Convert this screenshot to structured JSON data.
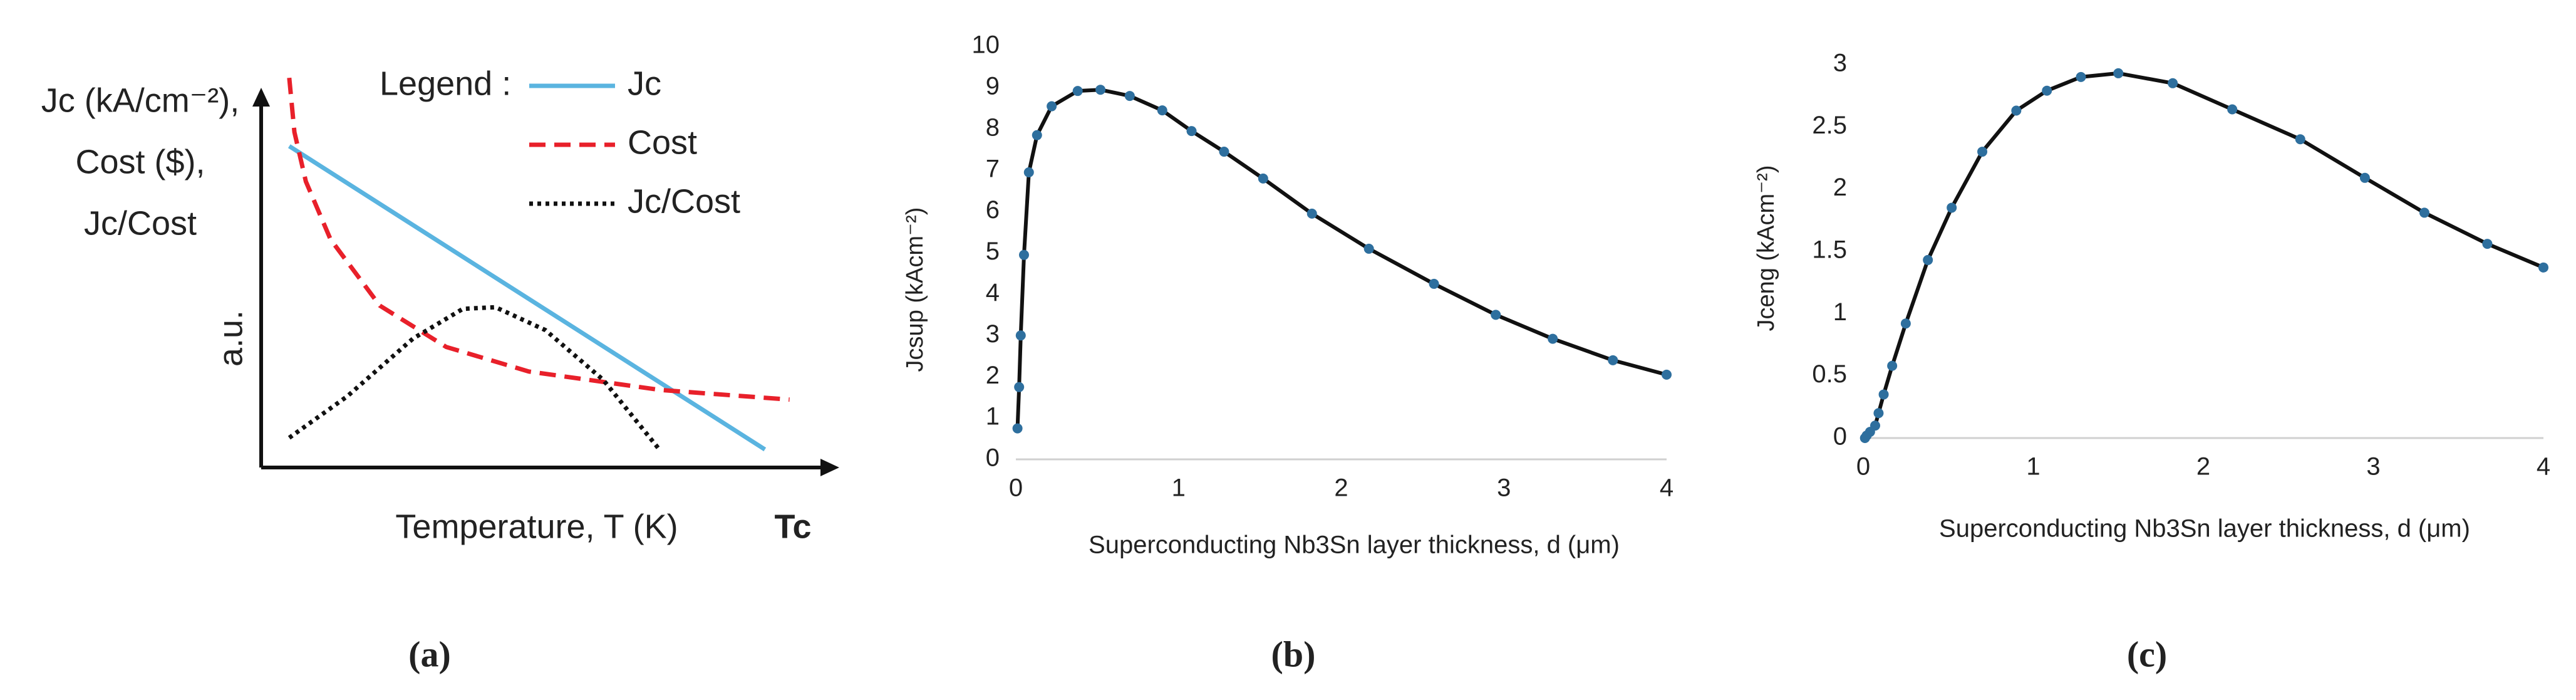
{
  "chart_data": [
    {
      "type": "schematic-line",
      "ylabel_lines": [
        "Jc (kA/cm⁻²),",
        "Cost ($),",
        "Jc/Cost"
      ],
      "ylabel": "a.u.",
      "xlabel": "Temperature, T (K)",
      "x_end_label": "Tc",
      "legend_title": "Legend :",
      "caption": "(a)",
      "xlim": [
        0,
        1
      ],
      "ylim": [
        0,
        1
      ],
      "series": [
        {
          "name": "Jc",
          "color": "#5ab4e0",
          "style": "solid",
          "x": [
            0.049,
            0.879
          ],
          "values": [
            0.8,
            0.045
          ]
        },
        {
          "name": "Cost",
          "color": "#e8202a",
          "style": "dashed",
          "x": [
            0.049,
            0.058,
            0.078,
            0.121,
            0.207,
            0.323,
            0.467,
            0.697,
            0.922
          ],
          "values": [
            0.97,
            0.835,
            0.712,
            0.568,
            0.403,
            0.3,
            0.239,
            0.193,
            0.169
          ]
        },
        {
          "name": "Jc/Cost",
          "color": "#111111",
          "style": "dotted",
          "x": [
            0.049,
            0.15,
            0.265,
            0.352,
            0.409,
            0.496,
            0.597,
            0.697
          ],
          "values": [
            0.074,
            0.177,
            0.321,
            0.395,
            0.399,
            0.342,
            0.218,
            0.041
          ]
        }
      ]
    },
    {
      "type": "line",
      "ylabel": "Jcsup (kAcm⁻²)",
      "xlabel": "Superconducting Nb3Sn layer thickness, d (μm)",
      "caption": "(b)",
      "xlim": [
        0,
        4
      ],
      "xticks": [
        0,
        1,
        2,
        3,
        4
      ],
      "ylim": [
        0,
        10
      ],
      "yticks": [
        0,
        1,
        2,
        3,
        4,
        5,
        6,
        7,
        8,
        9,
        10
      ],
      "grid": false,
      "line_color": "#111111",
      "marker_color": "#2e6f9e",
      "x": [
        0.01,
        0.02,
        0.03,
        0.05,
        0.08,
        0.13,
        0.22,
        0.38,
        0.52,
        0.7,
        0.9,
        1.08,
        1.28,
        1.52,
        1.82,
        2.17,
        2.57,
        2.95,
        3.3,
        3.67,
        4.0
      ],
      "values": [
        0.75,
        1.75,
        3.0,
        4.95,
        6.95,
        7.85,
        8.55,
        8.92,
        8.95,
        8.8,
        8.45,
        7.95,
        7.45,
        6.8,
        5.95,
        5.1,
        4.25,
        3.5,
        2.92,
        2.4,
        2.05
      ]
    },
    {
      "type": "line",
      "ylabel": "Jceng (kAcm⁻²)",
      "xlabel": "Superconducting Nb3Sn layer thickness, d (μm)",
      "caption": "(c)",
      "xlim": [
        0,
        4
      ],
      "xticks": [
        0,
        1,
        2,
        3,
        4
      ],
      "ylim": [
        0,
        3
      ],
      "yticks": [
        0,
        0.5,
        1,
        1.5,
        2,
        2.5,
        3
      ],
      "grid": false,
      "line_color": "#111111",
      "marker_color": "#2e6f9e",
      "x": [
        0.01,
        0.02,
        0.04,
        0.07,
        0.09,
        0.12,
        0.17,
        0.25,
        0.38,
        0.52,
        0.7,
        0.9,
        1.08,
        1.28,
        1.5,
        1.82,
        2.17,
        2.57,
        2.95,
        3.3,
        3.67,
        4.0
      ],
      "values": [
        0.0,
        0.02,
        0.05,
        0.1,
        0.2,
        0.35,
        0.58,
        0.92,
        1.43,
        1.85,
        2.3,
        2.63,
        2.79,
        2.9,
        2.93,
        2.85,
        2.64,
        2.4,
        2.09,
        1.81,
        1.56,
        1.37
      ]
    }
  ]
}
